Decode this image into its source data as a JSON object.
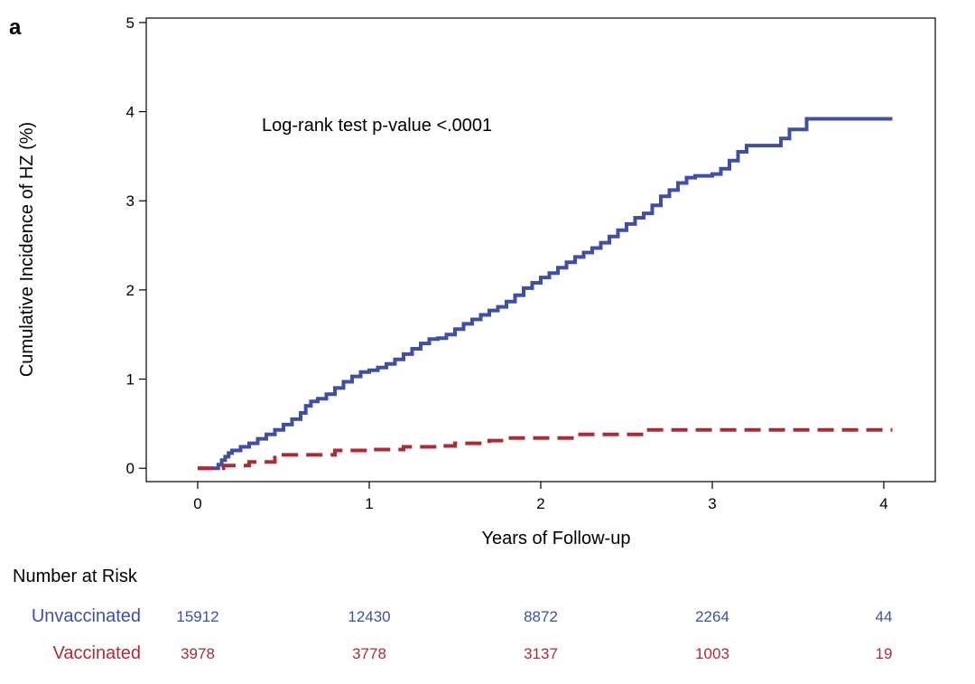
{
  "chart_data": {
    "type": "line",
    "panel_label": "a",
    "title": "",
    "xlabel": "Years of Follow-up",
    "ylabel": "Cumulative Incidence of HZ (%)",
    "xlim": [
      -0.3,
      4.3
    ],
    "ylim": [
      -0.15,
      5.05
    ],
    "xticks": [
      0,
      1,
      2,
      3,
      4
    ],
    "yticks": [
      0,
      1,
      2,
      3,
      4,
      5
    ],
    "grid": false,
    "annotation": "Log-rank test p-value <.0001",
    "series": [
      {
        "name": "Unvaccinated",
        "color": "#3f4fa8",
        "style": "solid",
        "step": true,
        "points": [
          [
            0.0,
            0.0
          ],
          [
            0.1,
            0.0
          ],
          [
            0.12,
            0.04
          ],
          [
            0.14,
            0.09
          ],
          [
            0.16,
            0.13
          ],
          [
            0.18,
            0.17
          ],
          [
            0.2,
            0.2
          ],
          [
            0.25,
            0.24
          ],
          [
            0.3,
            0.28
          ],
          [
            0.35,
            0.33
          ],
          [
            0.4,
            0.38
          ],
          [
            0.45,
            0.43
          ],
          [
            0.5,
            0.49
          ],
          [
            0.55,
            0.55
          ],
          [
            0.6,
            0.62
          ],
          [
            0.63,
            0.7
          ],
          [
            0.66,
            0.75
          ],
          [
            0.7,
            0.78
          ],
          [
            0.75,
            0.83
          ],
          [
            0.8,
            0.9
          ],
          [
            0.85,
            0.97
          ],
          [
            0.9,
            1.03
          ],
          [
            0.95,
            1.08
          ],
          [
            1.0,
            1.1
          ],
          [
            1.05,
            1.13
          ],
          [
            1.1,
            1.17
          ],
          [
            1.15,
            1.22
          ],
          [
            1.2,
            1.28
          ],
          [
            1.25,
            1.34
          ],
          [
            1.3,
            1.4
          ],
          [
            1.35,
            1.45
          ],
          [
            1.4,
            1.46
          ],
          [
            1.45,
            1.5
          ],
          [
            1.5,
            1.56
          ],
          [
            1.55,
            1.62
          ],
          [
            1.6,
            1.67
          ],
          [
            1.65,
            1.72
          ],
          [
            1.7,
            1.77
          ],
          [
            1.75,
            1.81
          ],
          [
            1.8,
            1.87
          ],
          [
            1.85,
            1.94
          ],
          [
            1.9,
            2.02
          ],
          [
            1.95,
            2.08
          ],
          [
            2.0,
            2.14
          ],
          [
            2.05,
            2.19
          ],
          [
            2.1,
            2.25
          ],
          [
            2.15,
            2.31
          ],
          [
            2.2,
            2.37
          ],
          [
            2.25,
            2.42
          ],
          [
            2.3,
            2.47
          ],
          [
            2.35,
            2.53
          ],
          [
            2.4,
            2.6
          ],
          [
            2.45,
            2.67
          ],
          [
            2.5,
            2.74
          ],
          [
            2.55,
            2.81
          ],
          [
            2.6,
            2.86
          ],
          [
            2.65,
            2.95
          ],
          [
            2.7,
            3.05
          ],
          [
            2.75,
            3.12
          ],
          [
            2.8,
            3.2
          ],
          [
            2.85,
            3.26
          ],
          [
            2.9,
            3.28
          ],
          [
            3.0,
            3.3
          ],
          [
            3.05,
            3.36
          ],
          [
            3.1,
            3.45
          ],
          [
            3.15,
            3.55
          ],
          [
            3.2,
            3.62
          ],
          [
            3.4,
            3.7
          ],
          [
            3.45,
            3.8
          ],
          [
            3.55,
            3.92
          ],
          [
            4.05,
            3.92
          ]
        ]
      },
      {
        "name": "Vaccinated",
        "color": "#b02a35",
        "style": "dashed",
        "step": true,
        "points": [
          [
            0.0,
            0.0
          ],
          [
            0.15,
            0.03
          ],
          [
            0.3,
            0.07
          ],
          [
            0.45,
            0.12
          ],
          [
            0.5,
            0.15
          ],
          [
            0.8,
            0.2
          ],
          [
            1.0,
            0.21
          ],
          [
            1.2,
            0.24
          ],
          [
            1.4,
            0.25
          ],
          [
            1.5,
            0.28
          ],
          [
            1.7,
            0.31
          ],
          [
            1.8,
            0.34
          ],
          [
            2.2,
            0.38
          ],
          [
            2.6,
            0.43
          ],
          [
            4.05,
            0.43
          ]
        ]
      }
    ],
    "number_at_risk": {
      "title": "Number at Risk",
      "times": [
        0,
        1,
        2,
        3,
        4
      ],
      "rows": [
        {
          "label": "Unvaccinated",
          "color": "#3f4fa8",
          "counts": [
            "15912",
            "12430",
            "8872",
            "2264",
            "44"
          ]
        },
        {
          "label": "Vaccinated",
          "color": "#b02a35",
          "counts": [
            "3978",
            "3778",
            "3137",
            "1003",
            "19"
          ]
        }
      ]
    }
  }
}
